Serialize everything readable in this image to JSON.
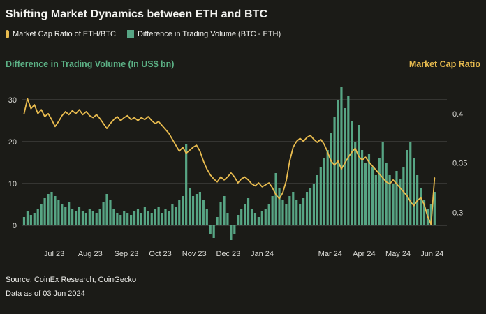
{
  "title": "Shifting Market Dynamics between ETH and BTC",
  "legend": [
    {
      "label": "Market Cap Ratio of ETH/BTC",
      "color": "#e9bc4f",
      "shape": "capsule"
    },
    {
      "label": "Difference in Trading Volume (BTC - ETH)",
      "color": "#57a584",
      "shape": "square"
    }
  ],
  "axis_titles": {
    "left": "Difference in Trading Volume (In US$ bn)",
    "right": "Market Cap Ratio"
  },
  "source": {
    "line1": "Source: CoinEx Research, CoinGecko",
    "line2": "Data as of 03 Jun 2024"
  },
  "colors": {
    "background": "#1b1b17",
    "bar": "#57a584",
    "line": "#e9bc4f",
    "grid": "#4f4f4d",
    "tick_text": "#dcdcd8",
    "left_axis_title": "#5cb286",
    "right_axis_title": "#e9bc4f"
  },
  "chart_data": {
    "type": "bar+line",
    "title": "Shifting Market Dynamics between ETH and BTC",
    "x_range_note": "Jun 2023 to 03 Jun 2024, approx 3-day resolution",
    "x_ticks": [
      {
        "label": "Jul 23",
        "pos": 0.075
      },
      {
        "label": "Aug 23",
        "pos": 0.16
      },
      {
        "label": "Sep 23",
        "pos": 0.245
      },
      {
        "label": "Oct 23",
        "pos": 0.325
      },
      {
        "label": "Nov 23",
        "pos": 0.405
      },
      {
        "label": "Dec 23",
        "pos": 0.485
      },
      {
        "label": "Jan 24",
        "pos": 0.565
      },
      {
        "label": "Mar 24",
        "pos": 0.725
      },
      {
        "label": "Apr 24",
        "pos": 0.805
      },
      {
        "label": "May 24",
        "pos": 0.885
      },
      {
        "label": "Jun 24",
        "pos": 0.965
      }
    ],
    "left_axis": {
      "label": "Difference in Trading Volume (In US$ bn)",
      "ticks": [
        0,
        10,
        20,
        30
      ],
      "plot_min": -5,
      "plot_max": 33.3
    },
    "right_axis": {
      "label": "Market Cap Ratio",
      "ticks": [
        0.3,
        0.35,
        0.4
      ],
      "value_at_left0": 0.287,
      "value_at_left30": 0.414
    },
    "series": [
      {
        "name": "Difference in Trading Volume (BTC - ETH)",
        "type": "bar",
        "axis": "left",
        "color": "#57a584",
        "values": [
          2,
          3.5,
          2.5,
          3,
          4,
          5,
          6.5,
          7.5,
          8,
          7,
          6,
          5,
          4.5,
          5.5,
          4,
          3.5,
          4.5,
          3.5,
          3,
          4,
          3.5,
          3,
          4,
          5.5,
          7.5,
          6,
          4,
          3,
          2.5,
          3.5,
          3,
          2.5,
          3.5,
          4,
          3,
          4.5,
          3.5,
          3,
          4,
          4.5,
          3,
          4,
          3.5,
          5,
          4.5,
          6,
          7,
          19.5,
          9,
          7,
          7.5,
          8,
          6,
          4,
          -2,
          -3,
          2,
          5.5,
          7,
          3,
          -3.5,
          -2,
          2.5,
          4,
          5,
          6.5,
          4,
          3,
          2,
          3.5,
          4,
          5,
          7,
          12.5,
          9,
          6,
          5,
          7,
          8,
          6,
          5,
          6.5,
          8,
          9,
          10,
          12,
          14,
          16,
          18,
          22,
          26,
          30,
          33,
          28,
          31,
          25,
          20,
          24,
          18,
          15,
          17,
          14,
          12,
          16,
          20,
          15,
          12,
          10,
          13,
          11,
          14,
          18,
          20,
          16,
          12,
          9,
          6,
          4,
          5,
          8
        ]
      },
      {
        "name": "Market Cap Ratio of ETH/BTC",
        "type": "line",
        "axis": "right",
        "color": "#e9bc4f",
        "values": [
          0.4,
          0.415,
          0.405,
          0.409,
          0.4,
          0.404,
          0.397,
          0.4,
          0.394,
          0.387,
          0.392,
          0.398,
          0.402,
          0.399,
          0.403,
          0.4,
          0.404,
          0.399,
          0.402,
          0.398,
          0.396,
          0.399,
          0.395,
          0.39,
          0.385,
          0.39,
          0.394,
          0.397,
          0.393,
          0.396,
          0.398,
          0.394,
          0.396,
          0.393,
          0.396,
          0.394,
          0.397,
          0.393,
          0.39,
          0.392,
          0.388,
          0.384,
          0.38,
          0.374,
          0.368,
          0.362,
          0.366,
          0.36,
          0.363,
          0.366,
          0.368,
          0.362,
          0.352,
          0.344,
          0.338,
          0.334,
          0.331,
          0.336,
          0.333,
          0.336,
          0.34,
          0.336,
          0.33,
          0.334,
          0.336,
          0.333,
          0.329,
          0.327,
          0.33,
          0.326,
          0.328,
          0.33,
          0.325,
          0.318,
          0.314,
          0.32,
          0.332,
          0.352,
          0.366,
          0.372,
          0.375,
          0.372,
          0.376,
          0.378,
          0.374,
          0.371,
          0.374,
          0.369,
          0.361,
          0.352,
          0.348,
          0.352,
          0.344,
          0.35,
          0.356,
          0.361,
          0.365,
          0.357,
          0.353,
          0.356,
          0.351,
          0.347,
          0.343,
          0.339,
          0.335,
          0.331,
          0.329,
          0.333,
          0.329,
          0.325,
          0.321,
          0.317,
          0.311,
          0.307,
          0.312,
          0.315,
          0.308,
          0.296,
          0.288,
          0.335
        ]
      }
    ],
    "grid": "horizontal-only",
    "legend_position": "top-left"
  }
}
